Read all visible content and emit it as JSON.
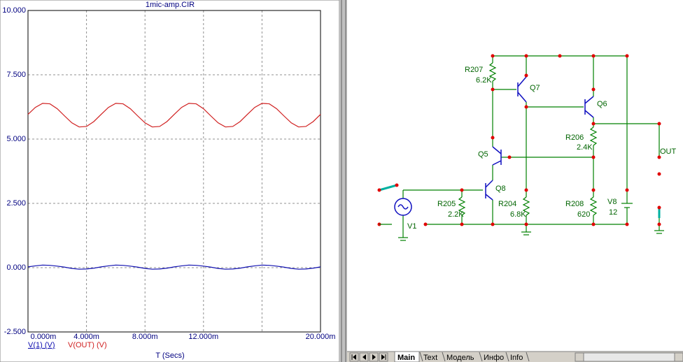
{
  "plot": {
    "type": "line",
    "title": "1mic-amp.CIR",
    "x_label": "T (Secs)",
    "x": [
      0,
      0.0005,
      0.001,
      0.0015,
      0.002,
      0.0025,
      0.003,
      0.0035,
      0.004,
      0.0045,
      0.005,
      0.0055,
      0.006,
      0.0065,
      0.007,
      0.0075,
      0.008,
      0.0085,
      0.009,
      0.0095,
      0.01,
      0.0105,
      0.011,
      0.0115,
      0.012,
      0.0125,
      0.013,
      0.0135,
      0.014,
      0.0145,
      0.015,
      0.0155,
      0.016,
      0.0165,
      0.017,
      0.0175,
      0.018,
      0.0185,
      0.019,
      0.0195,
      0.02
    ],
    "series": [
      {
        "name": "V(1) (V)",
        "color": "#1010b0",
        "values": [
          0.03,
          0.07,
          0.1,
          0.09,
          0.06,
          0.02,
          -0.03,
          -0.06,
          -0.05,
          -0.02,
          0.03,
          0.07,
          0.1,
          0.09,
          0.06,
          0.02,
          -0.03,
          -0.06,
          -0.05,
          -0.02,
          0.03,
          0.07,
          0.1,
          0.09,
          0.06,
          0.02,
          -0.03,
          -0.06,
          -0.05,
          -0.02,
          0.03,
          0.07,
          0.1,
          0.09,
          0.06,
          0.02,
          -0.03,
          -0.06,
          -0.05,
          -0.02,
          0.03
        ]
      },
      {
        "name": "V(OUT) (V)",
        "color": "#d02020",
        "values": [
          5.96,
          6.23,
          6.39,
          6.37,
          6.18,
          5.9,
          5.63,
          5.47,
          5.49,
          5.68,
          5.96,
          6.23,
          6.39,
          6.37,
          6.18,
          5.9,
          5.63,
          5.47,
          5.49,
          5.68,
          5.96,
          6.23,
          6.39,
          6.37,
          6.18,
          5.9,
          5.63,
          5.47,
          5.49,
          5.68,
          5.96,
          6.23,
          6.39,
          6.37,
          6.18,
          5.9,
          5.63,
          5.47,
          5.49,
          5.68,
          5.96
        ]
      }
    ],
    "xlim": [
      0,
      0.02
    ],
    "xticks": [
      {
        "value": 0,
        "label": "0.000m"
      },
      {
        "value": 0.004,
        "label": "4.000m"
      },
      {
        "value": 0.008,
        "label": "8.000m"
      },
      {
        "value": 0.012,
        "label": "12.000m"
      },
      {
        "value": 0.016,
        "label": null
      },
      {
        "value": 0.02,
        "label": "20.000m"
      }
    ],
    "ylim": [
      -2.5,
      10
    ],
    "yticks": [
      {
        "value": 10,
        "label": "10.000"
      },
      {
        "value": 7.5,
        "label": "7.500"
      },
      {
        "value": 5,
        "label": "5.000"
      },
      {
        "value": 2.5,
        "label": "2.500"
      },
      {
        "value": 0,
        "label": "0.000"
      },
      {
        "value": -2.5,
        "label": "-2.500"
      }
    ],
    "grid": true
  },
  "schematic": {
    "labels": [
      "R207",
      "6.2K",
      "Q7",
      "Q6",
      "R206",
      "2.4K",
      "Q5",
      "OUT",
      "Q8",
      "R205",
      "2.2K",
      "R204",
      "6.8K",
      "R208",
      "620",
      "V8",
      "12",
      "V1"
    ]
  },
  "tabs": [
    "Main",
    "Text",
    "Модель",
    "Инфо",
    "Info"
  ]
}
